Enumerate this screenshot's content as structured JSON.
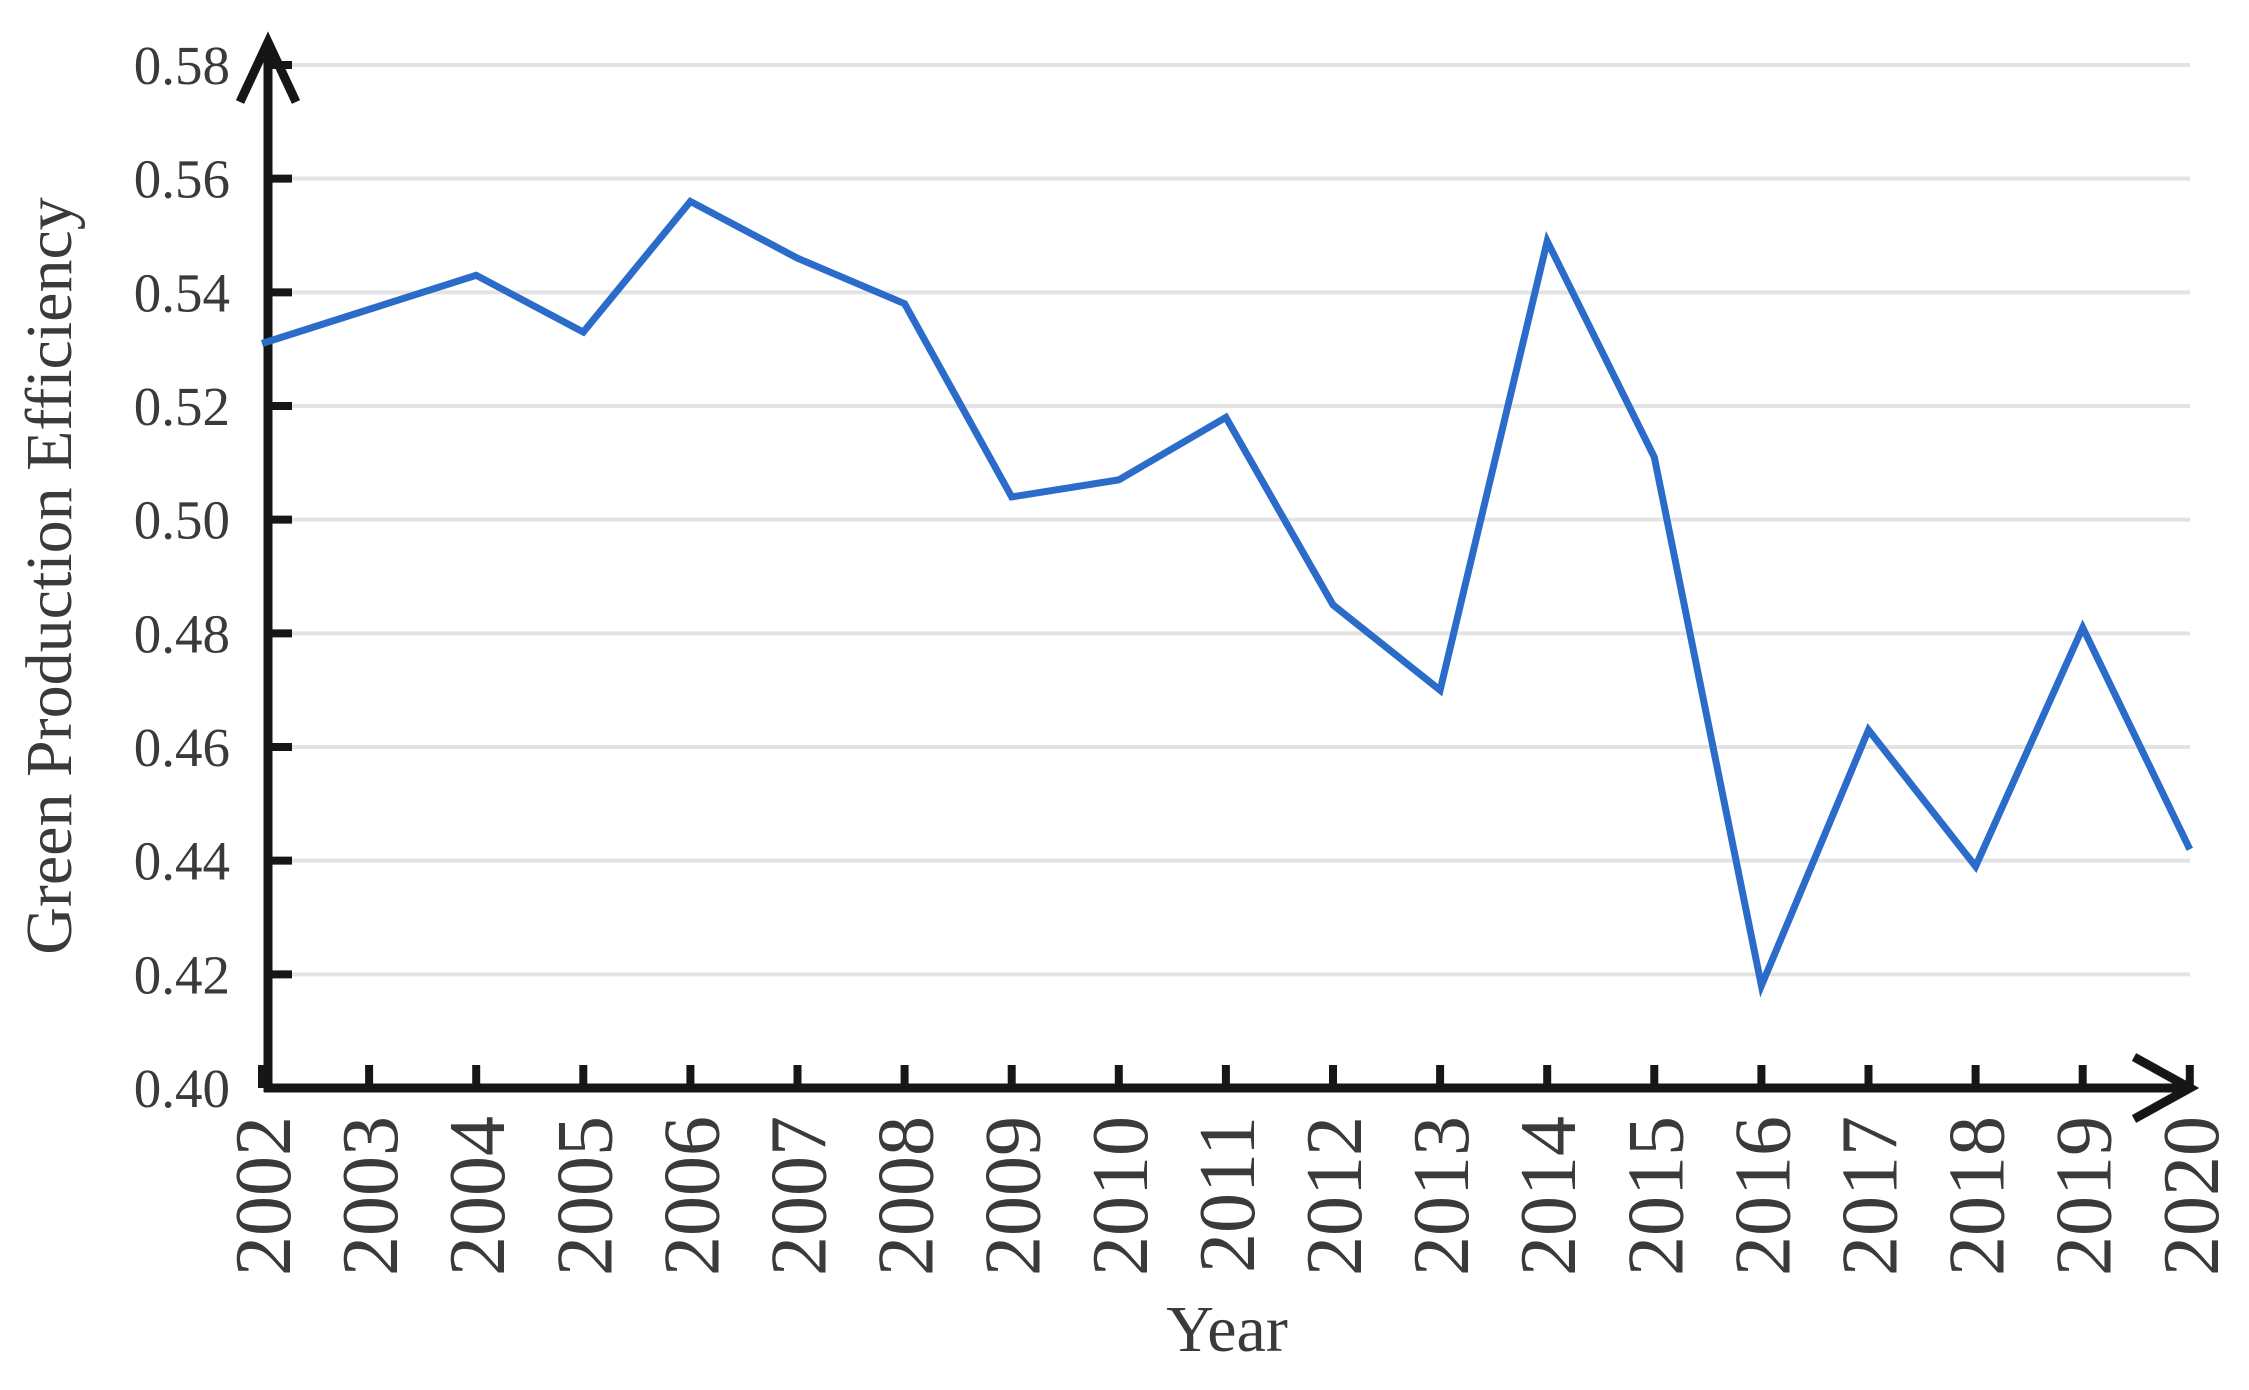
{
  "chart_data": {
    "type": "line",
    "title": "",
    "xlabel": "Year",
    "ylabel": "Green Production Efficiency",
    "series": [
      {
        "name": "Green Production Efficiency",
        "x": [
          2002,
          2003,
          2004,
          2005,
          2006,
          2007,
          2008,
          2009,
          2010,
          2011,
          2012,
          2013,
          2014,
          2015,
          2016,
          2017,
          2018,
          2019,
          2020
        ],
        "values": [
          0.531,
          0.537,
          0.543,
          0.533,
          0.556,
          0.546,
          0.538,
          0.504,
          0.507,
          0.518,
          0.485,
          0.47,
          0.549,
          0.511,
          0.418,
          0.463,
          0.439,
          0.481,
          0.442
        ]
      }
    ],
    "xtick_labels": [
      "2002",
      "2003",
      "2004",
      "2005",
      "2006",
      "2007",
      "2008",
      "2009",
      "2010",
      "2011",
      "2012",
      "2013",
      "2014",
      "2015",
      "2016",
      "2017",
      "2018",
      "2019",
      "2020"
    ],
    "ytick_labels": [
      "0.58",
      "0.56",
      "0.54",
      "0.52",
      "0.50",
      "0.48",
      "0.46",
      "0.44",
      "0.42",
      "0.40"
    ],
    "ylim": [
      0.4,
      0.58
    ],
    "ytick_step": 0.02,
    "grid": "horizontal-only",
    "legend_position": "none",
    "colors": {
      "line": "#2b6bc9",
      "axis": "#161616",
      "gridline": "#e3e3e3",
      "tick_label": "#3a3a3a"
    }
  }
}
